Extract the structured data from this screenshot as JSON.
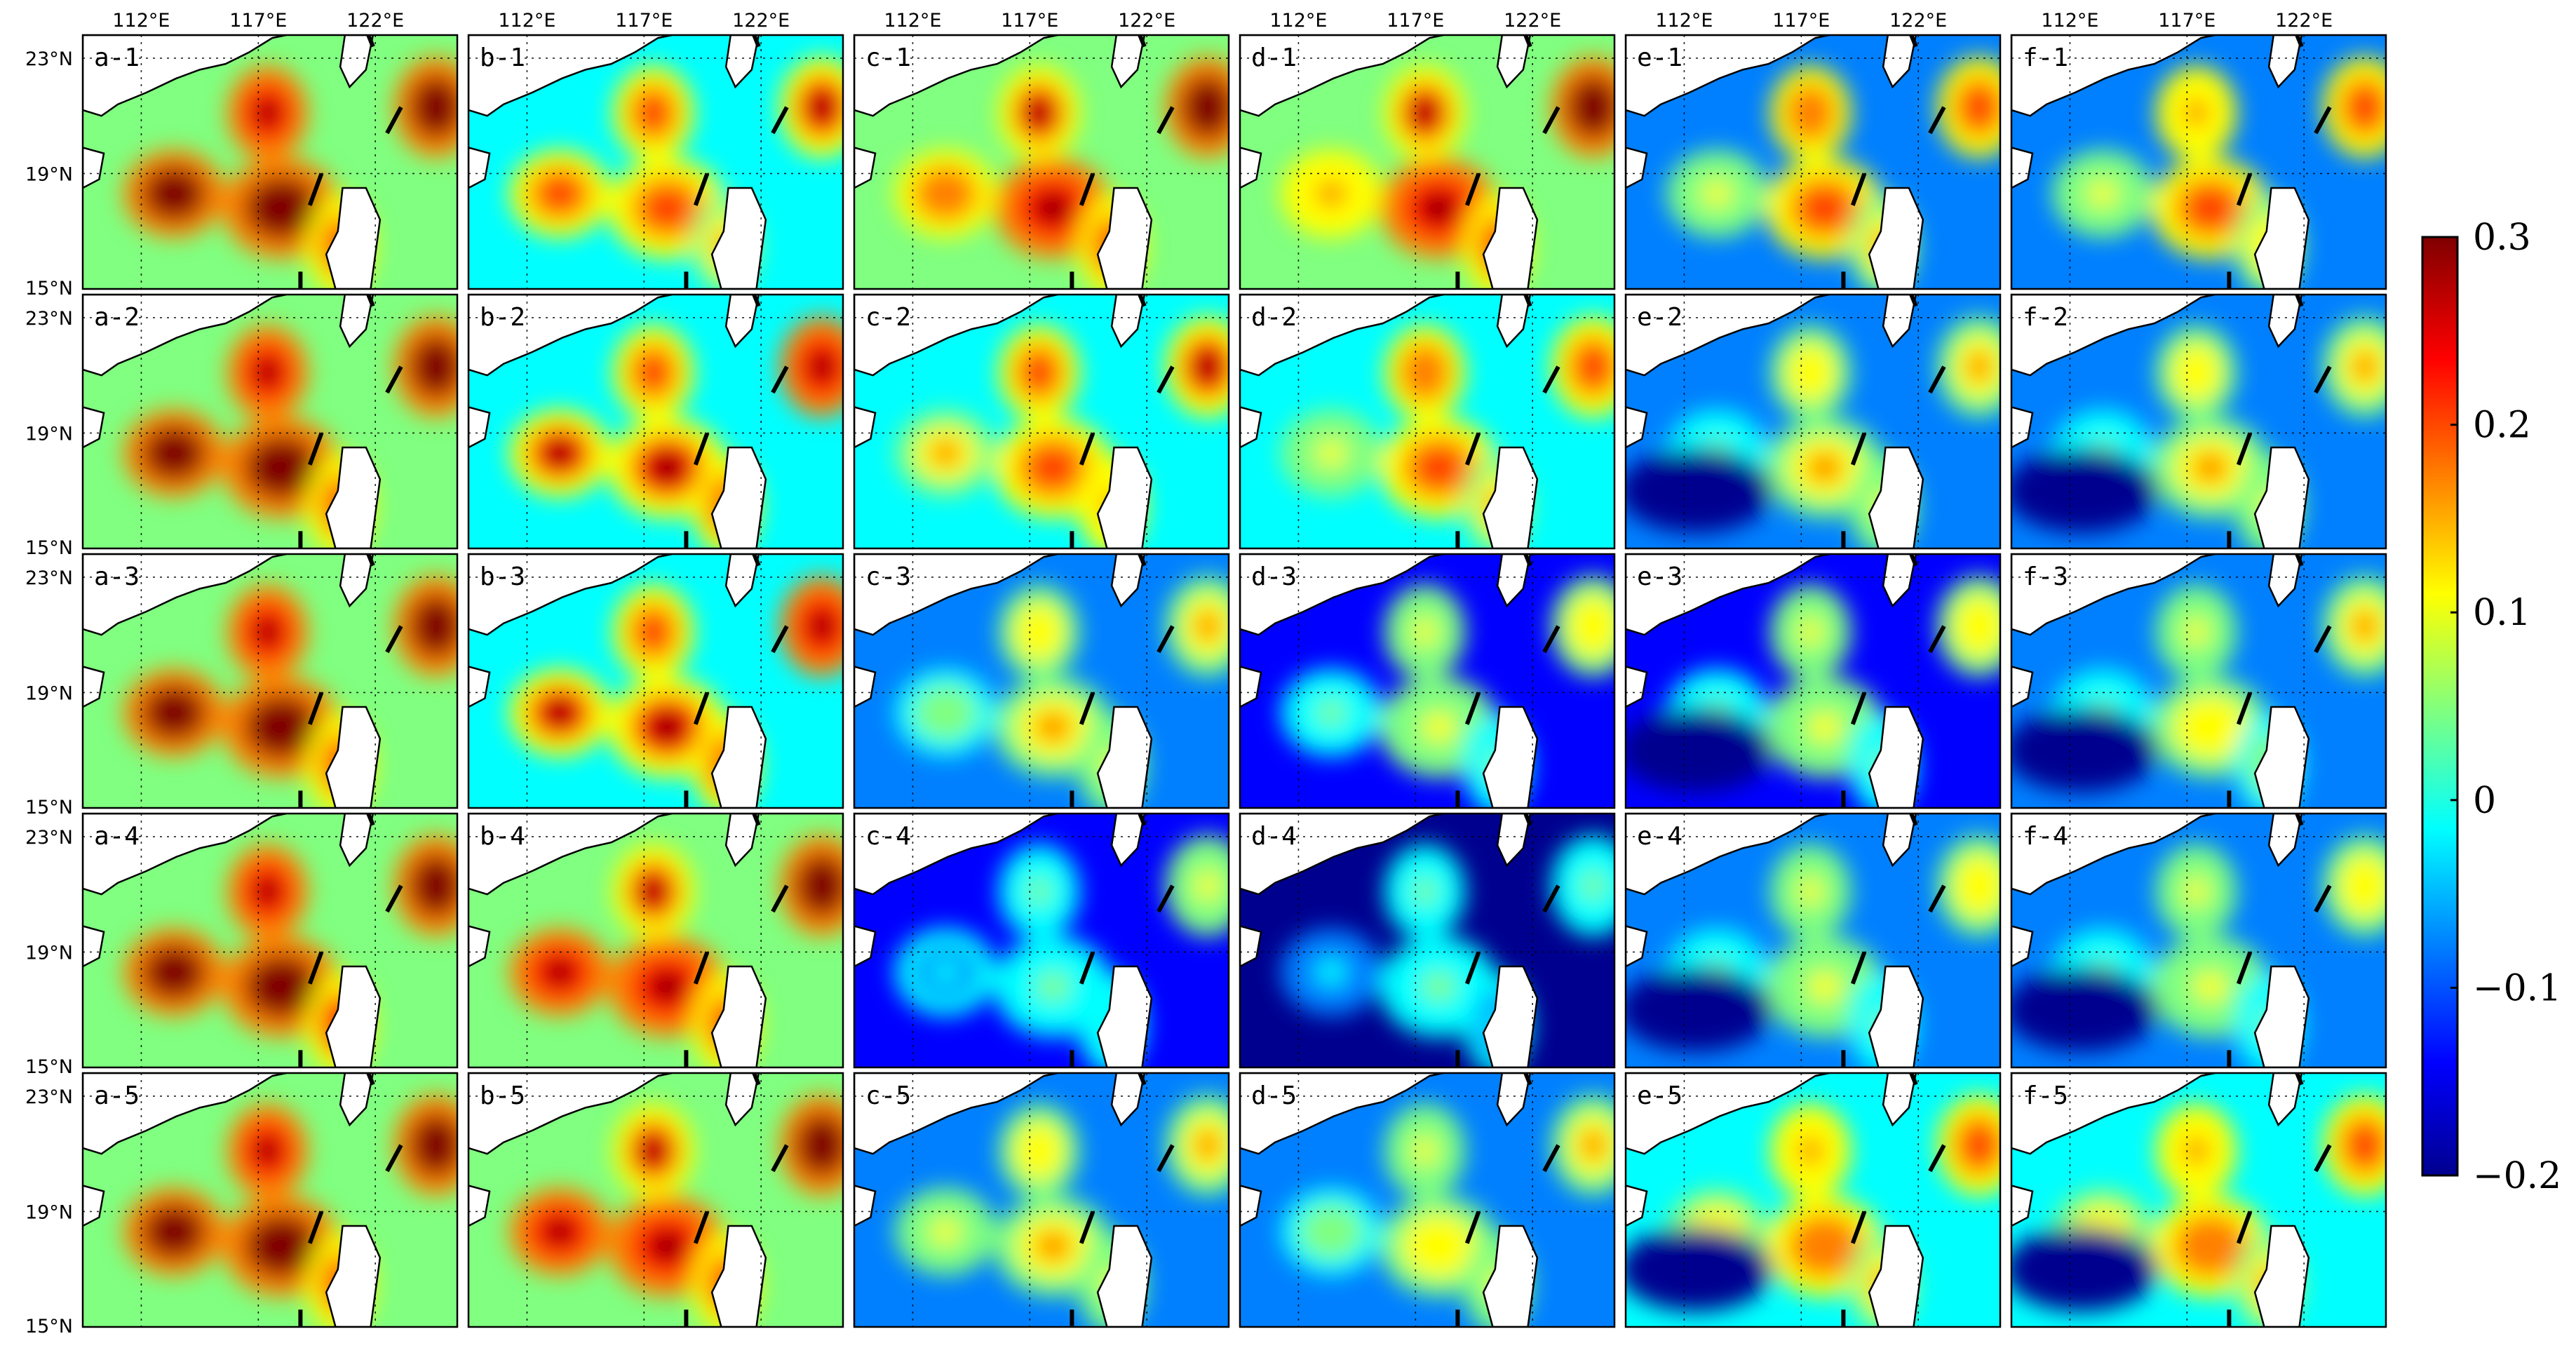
{
  "figure": {
    "columns": [
      "a",
      "b",
      "c",
      "d",
      "e",
      "f"
    ],
    "rows": [
      "1",
      "2",
      "3",
      "4",
      "5"
    ],
    "panel_labels": [
      [
        "a-1",
        "b-1",
        "c-1",
        "d-1",
        "e-1",
        "f-1"
      ],
      [
        "a-2",
        "b-2",
        "c-2",
        "d-2",
        "e-2",
        "f-2"
      ],
      [
        "a-3",
        "b-3",
        "c-3",
        "d-3",
        "e-3",
        "f-3"
      ],
      [
        "a-4",
        "b-4",
        "c-4",
        "d-4",
        "e-4",
        "f-4"
      ],
      [
        "a-5",
        "b-5",
        "c-5",
        "d-5",
        "e-5",
        "f-5"
      ]
    ],
    "lon_ticks": [
      "112°E",
      "117°E",
      "122°E"
    ],
    "lat_ticks": [
      "23°N",
      "19°N",
      "15°N"
    ],
    "extent": {
      "lon": [
        109.5,
        125.5
      ],
      "lat": [
        15,
        23.8
      ]
    }
  },
  "colorbar": {
    "ticks": [
      "0.3",
      "0.2",
      "0.1",
      "0",
      "−0.1",
      "−0.2"
    ],
    "tick_values": [
      0.3,
      0.2,
      0.1,
      0,
      -0.1,
      -0.2
    ],
    "range": [
      -0.2,
      0.3
    ],
    "colormap": "jet",
    "stops": [
      "#00008f",
      "#0000ff",
      "#00ffff",
      "#ffff00",
      "#ff0000",
      "#800000"
    ]
  },
  "colors": {
    "land": "#ffffff",
    "coastline": "#000000"
  }
}
